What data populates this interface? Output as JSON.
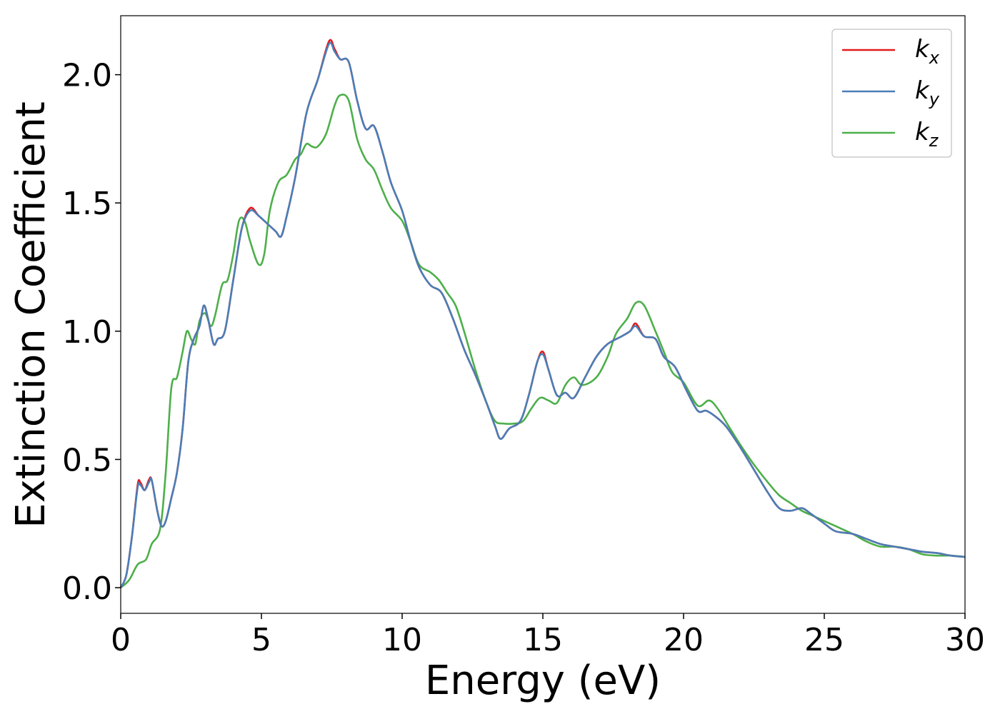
{
  "chart_data": {
    "type": "line",
    "title": "",
    "xlabel": "Energy (eV)",
    "ylabel": "Extinction Coefficient",
    "xlim": [
      0,
      30
    ],
    "ylim": [
      -0.1,
      2.23
    ],
    "xticks": [
      0,
      5,
      10,
      15,
      20,
      25,
      30
    ],
    "xtick_labels": [
      "0",
      "5",
      "10",
      "15",
      "20",
      "25",
      "30"
    ],
    "yticks": [
      0.0,
      0.5,
      1.0,
      1.5,
      2.0
    ],
    "ytick_labels": [
      "0.0",
      "0.5",
      "1.0",
      "1.5",
      "2.0"
    ],
    "grid": false,
    "legend_position": "top-right",
    "series": [
      {
        "name": "k",
        "subscript": "x",
        "color": "#e41a1c",
        "points": [
          [
            0,
            0
          ],
          [
            0.2,
            0.05
          ],
          [
            0.4,
            0.2
          ],
          [
            0.6,
            0.4
          ],
          [
            0.7,
            0.41
          ],
          [
            0.85,
            0.38
          ],
          [
            1.0,
            0.42
          ],
          [
            1.1,
            0.42
          ],
          [
            1.3,
            0.3
          ],
          [
            1.45,
            0.24
          ],
          [
            1.6,
            0.26
          ],
          [
            1.8,
            0.35
          ],
          [
            2.0,
            0.45
          ],
          [
            2.2,
            0.62
          ],
          [
            2.4,
            0.88
          ],
          [
            2.6,
            0.97
          ],
          [
            2.8,
            1.02
          ],
          [
            2.95,
            1.1
          ],
          [
            3.1,
            1.05
          ],
          [
            3.3,
            0.95
          ],
          [
            3.45,
            0.97
          ],
          [
            3.7,
            1.0
          ],
          [
            4.0,
            1.2
          ],
          [
            4.3,
            1.4
          ],
          [
            4.6,
            1.48
          ],
          [
            4.9,
            1.45
          ],
          [
            5.2,
            1.42
          ],
          [
            5.5,
            1.39
          ],
          [
            5.7,
            1.37
          ],
          [
            5.9,
            1.45
          ],
          [
            6.2,
            1.6
          ],
          [
            6.6,
            1.85
          ],
          [
            7.0,
            1.98
          ],
          [
            7.4,
            2.13
          ],
          [
            7.6,
            2.1
          ],
          [
            7.8,
            2.06
          ],
          [
            8.1,
            2.05
          ],
          [
            8.4,
            1.9
          ],
          [
            8.7,
            1.79
          ],
          [
            9.0,
            1.8
          ],
          [
            9.3,
            1.7
          ],
          [
            9.6,
            1.58
          ],
          [
            10.0,
            1.47
          ],
          [
            10.3,
            1.35
          ],
          [
            10.6,
            1.25
          ],
          [
            11.0,
            1.18
          ],
          [
            11.4,
            1.15
          ],
          [
            11.8,
            1.05
          ],
          [
            12.2,
            0.93
          ],
          [
            12.6,
            0.83
          ],
          [
            13.0,
            0.72
          ],
          [
            13.3,
            0.63
          ],
          [
            13.5,
            0.58
          ],
          [
            13.8,
            0.62
          ],
          [
            14.2,
            0.65
          ],
          [
            14.5,
            0.75
          ],
          [
            14.8,
            0.88
          ],
          [
            15.0,
            0.92
          ],
          [
            15.2,
            0.85
          ],
          [
            15.5,
            0.75
          ],
          [
            15.8,
            0.76
          ],
          [
            16.1,
            0.74
          ],
          [
            16.5,
            0.82
          ],
          [
            16.9,
            0.9
          ],
          [
            17.3,
            0.95
          ],
          [
            17.8,
            0.98
          ],
          [
            18.1,
            1.0
          ],
          [
            18.3,
            1.03
          ],
          [
            18.6,
            0.98
          ],
          [
            19.0,
            0.97
          ],
          [
            19.3,
            0.9
          ],
          [
            19.7,
            0.86
          ],
          [
            20.1,
            0.77
          ],
          [
            20.5,
            0.69
          ],
          [
            20.8,
            0.69
          ],
          [
            21.1,
            0.67
          ],
          [
            21.5,
            0.63
          ],
          [
            22.0,
            0.55
          ],
          [
            22.5,
            0.46
          ],
          [
            23.0,
            0.37
          ],
          [
            23.4,
            0.31
          ],
          [
            23.8,
            0.3
          ],
          [
            24.2,
            0.31
          ],
          [
            24.5,
            0.29
          ],
          [
            25.0,
            0.25
          ],
          [
            25.4,
            0.22
          ],
          [
            26.0,
            0.21
          ],
          [
            26.5,
            0.19
          ],
          [
            27.0,
            0.17
          ],
          [
            27.5,
            0.16
          ],
          [
            28.0,
            0.15
          ],
          [
            28.5,
            0.14
          ],
          [
            29.0,
            0.135
          ],
          [
            29.5,
            0.125
          ],
          [
            30.0,
            0.12
          ]
        ]
      },
      {
        "name": "k",
        "subscript": "y",
        "color": "#4a7eb7",
        "points": [
          [
            0,
            0
          ],
          [
            0.2,
            0.05
          ],
          [
            0.4,
            0.2
          ],
          [
            0.6,
            0.39
          ],
          [
            0.7,
            0.4
          ],
          [
            0.85,
            0.38
          ],
          [
            1.0,
            0.41
          ],
          [
            1.1,
            0.42
          ],
          [
            1.3,
            0.3
          ],
          [
            1.45,
            0.24
          ],
          [
            1.6,
            0.26
          ],
          [
            1.8,
            0.35
          ],
          [
            2.0,
            0.45
          ],
          [
            2.2,
            0.62
          ],
          [
            2.4,
            0.88
          ],
          [
            2.6,
            0.97
          ],
          [
            2.8,
            1.02
          ],
          [
            2.95,
            1.1
          ],
          [
            3.1,
            1.05
          ],
          [
            3.3,
            0.95
          ],
          [
            3.45,
            0.97
          ],
          [
            3.7,
            1.0
          ],
          [
            4.0,
            1.2
          ],
          [
            4.3,
            1.4
          ],
          [
            4.6,
            1.47
          ],
          [
            4.9,
            1.45
          ],
          [
            5.2,
            1.42
          ],
          [
            5.5,
            1.39
          ],
          [
            5.7,
            1.37
          ],
          [
            5.9,
            1.45
          ],
          [
            6.2,
            1.6
          ],
          [
            6.6,
            1.85
          ],
          [
            7.0,
            1.98
          ],
          [
            7.4,
            2.12
          ],
          [
            7.6,
            2.09
          ],
          [
            7.8,
            2.06
          ],
          [
            8.1,
            2.05
          ],
          [
            8.4,
            1.9
          ],
          [
            8.7,
            1.79
          ],
          [
            9.0,
            1.8
          ],
          [
            9.3,
            1.7
          ],
          [
            9.6,
            1.58
          ],
          [
            10.0,
            1.47
          ],
          [
            10.3,
            1.35
          ],
          [
            10.6,
            1.25
          ],
          [
            11.0,
            1.18
          ],
          [
            11.4,
            1.15
          ],
          [
            11.8,
            1.05
          ],
          [
            12.2,
            0.93
          ],
          [
            12.6,
            0.83
          ],
          [
            13.0,
            0.72
          ],
          [
            13.3,
            0.63
          ],
          [
            13.5,
            0.58
          ],
          [
            13.8,
            0.62
          ],
          [
            14.2,
            0.65
          ],
          [
            14.5,
            0.75
          ],
          [
            14.8,
            0.88
          ],
          [
            15.0,
            0.91
          ],
          [
            15.2,
            0.85
          ],
          [
            15.5,
            0.75
          ],
          [
            15.8,
            0.76
          ],
          [
            16.1,
            0.74
          ],
          [
            16.5,
            0.82
          ],
          [
            16.9,
            0.9
          ],
          [
            17.3,
            0.95
          ],
          [
            17.8,
            0.98
          ],
          [
            18.1,
            1.0
          ],
          [
            18.3,
            1.02
          ],
          [
            18.6,
            0.98
          ],
          [
            19.0,
            0.97
          ],
          [
            19.3,
            0.9
          ],
          [
            19.7,
            0.86
          ],
          [
            20.1,
            0.77
          ],
          [
            20.5,
            0.69
          ],
          [
            20.8,
            0.69
          ],
          [
            21.1,
            0.67
          ],
          [
            21.5,
            0.63
          ],
          [
            22.0,
            0.55
          ],
          [
            22.5,
            0.46
          ],
          [
            23.0,
            0.37
          ],
          [
            23.4,
            0.31
          ],
          [
            23.8,
            0.3
          ],
          [
            24.2,
            0.31
          ],
          [
            24.5,
            0.29
          ],
          [
            25.0,
            0.25
          ],
          [
            25.4,
            0.22
          ],
          [
            26.0,
            0.21
          ],
          [
            26.5,
            0.19
          ],
          [
            27.0,
            0.17
          ],
          [
            27.5,
            0.16
          ],
          [
            28.0,
            0.15
          ],
          [
            28.5,
            0.14
          ],
          [
            29.0,
            0.135
          ],
          [
            29.5,
            0.125
          ],
          [
            30.0,
            0.12
          ]
        ]
      },
      {
        "name": "k",
        "subscript": "z",
        "color": "#4daf4a",
        "points": [
          [
            0,
            0
          ],
          [
            0.3,
            0.03
          ],
          [
            0.6,
            0.09
          ],
          [
            0.9,
            0.11
          ],
          [
            1.1,
            0.17
          ],
          [
            1.4,
            0.23
          ],
          [
            1.6,
            0.45
          ],
          [
            1.8,
            0.78
          ],
          [
            2.0,
            0.82
          ],
          [
            2.2,
            0.92
          ],
          [
            2.35,
            1.0
          ],
          [
            2.5,
            0.97
          ],
          [
            2.65,
            0.95
          ],
          [
            2.8,
            1.04
          ],
          [
            3.0,
            1.07
          ],
          [
            3.2,
            1.02
          ],
          [
            3.35,
            1.06
          ],
          [
            3.6,
            1.18
          ],
          [
            3.8,
            1.2
          ],
          [
            4.0,
            1.3
          ],
          [
            4.2,
            1.43
          ],
          [
            4.4,
            1.43
          ],
          [
            4.6,
            1.35
          ],
          [
            4.9,
            1.26
          ],
          [
            5.1,
            1.3
          ],
          [
            5.3,
            1.47
          ],
          [
            5.6,
            1.58
          ],
          [
            5.9,
            1.61
          ],
          [
            6.2,
            1.67
          ],
          [
            6.4,
            1.69
          ],
          [
            6.6,
            1.73
          ],
          [
            6.8,
            1.72
          ],
          [
            7.0,
            1.72
          ],
          [
            7.3,
            1.77
          ],
          [
            7.6,
            1.88
          ],
          [
            7.8,
            1.92
          ],
          [
            8.1,
            1.9
          ],
          [
            8.4,
            1.75
          ],
          [
            8.7,
            1.67
          ],
          [
            9.0,
            1.63
          ],
          [
            9.3,
            1.55
          ],
          [
            9.6,
            1.48
          ],
          [
            10.0,
            1.43
          ],
          [
            10.3,
            1.35
          ],
          [
            10.6,
            1.26
          ],
          [
            11.0,
            1.23
          ],
          [
            11.3,
            1.2
          ],
          [
            11.6,
            1.15
          ],
          [
            11.9,
            1.1
          ],
          [
            12.2,
            1.0
          ],
          [
            12.6,
            0.85
          ],
          [
            13.0,
            0.72
          ],
          [
            13.3,
            0.65
          ],
          [
            13.6,
            0.64
          ],
          [
            14.0,
            0.64
          ],
          [
            14.3,
            0.65
          ],
          [
            14.6,
            0.7
          ],
          [
            14.9,
            0.74
          ],
          [
            15.2,
            0.73
          ],
          [
            15.5,
            0.72
          ],
          [
            15.8,
            0.79
          ],
          [
            16.1,
            0.82
          ],
          [
            16.4,
            0.79
          ],
          [
            16.9,
            0.82
          ],
          [
            17.3,
            0.9
          ],
          [
            17.6,
            0.99
          ],
          [
            18.0,
            1.05
          ],
          [
            18.3,
            1.11
          ],
          [
            18.6,
            1.1
          ],
          [
            19.0,
            1.0
          ],
          [
            19.3,
            0.92
          ],
          [
            19.6,
            0.84
          ],
          [
            20.0,
            0.8
          ],
          [
            20.5,
            0.71
          ],
          [
            20.9,
            0.73
          ],
          [
            21.2,
            0.7
          ],
          [
            21.6,
            0.63
          ],
          [
            22.0,
            0.56
          ],
          [
            22.5,
            0.48
          ],
          [
            23.0,
            0.41
          ],
          [
            23.4,
            0.36
          ],
          [
            23.8,
            0.33
          ],
          [
            24.2,
            0.3
          ],
          [
            24.6,
            0.28
          ],
          [
            25.0,
            0.26
          ],
          [
            25.4,
            0.24
          ],
          [
            26.0,
            0.21
          ],
          [
            26.5,
            0.18
          ],
          [
            27.0,
            0.16
          ],
          [
            27.5,
            0.16
          ],
          [
            28.0,
            0.15
          ],
          [
            28.5,
            0.13
          ],
          [
            29.0,
            0.125
          ],
          [
            29.5,
            0.125
          ],
          [
            30.0,
            0.12
          ]
        ]
      }
    ]
  }
}
